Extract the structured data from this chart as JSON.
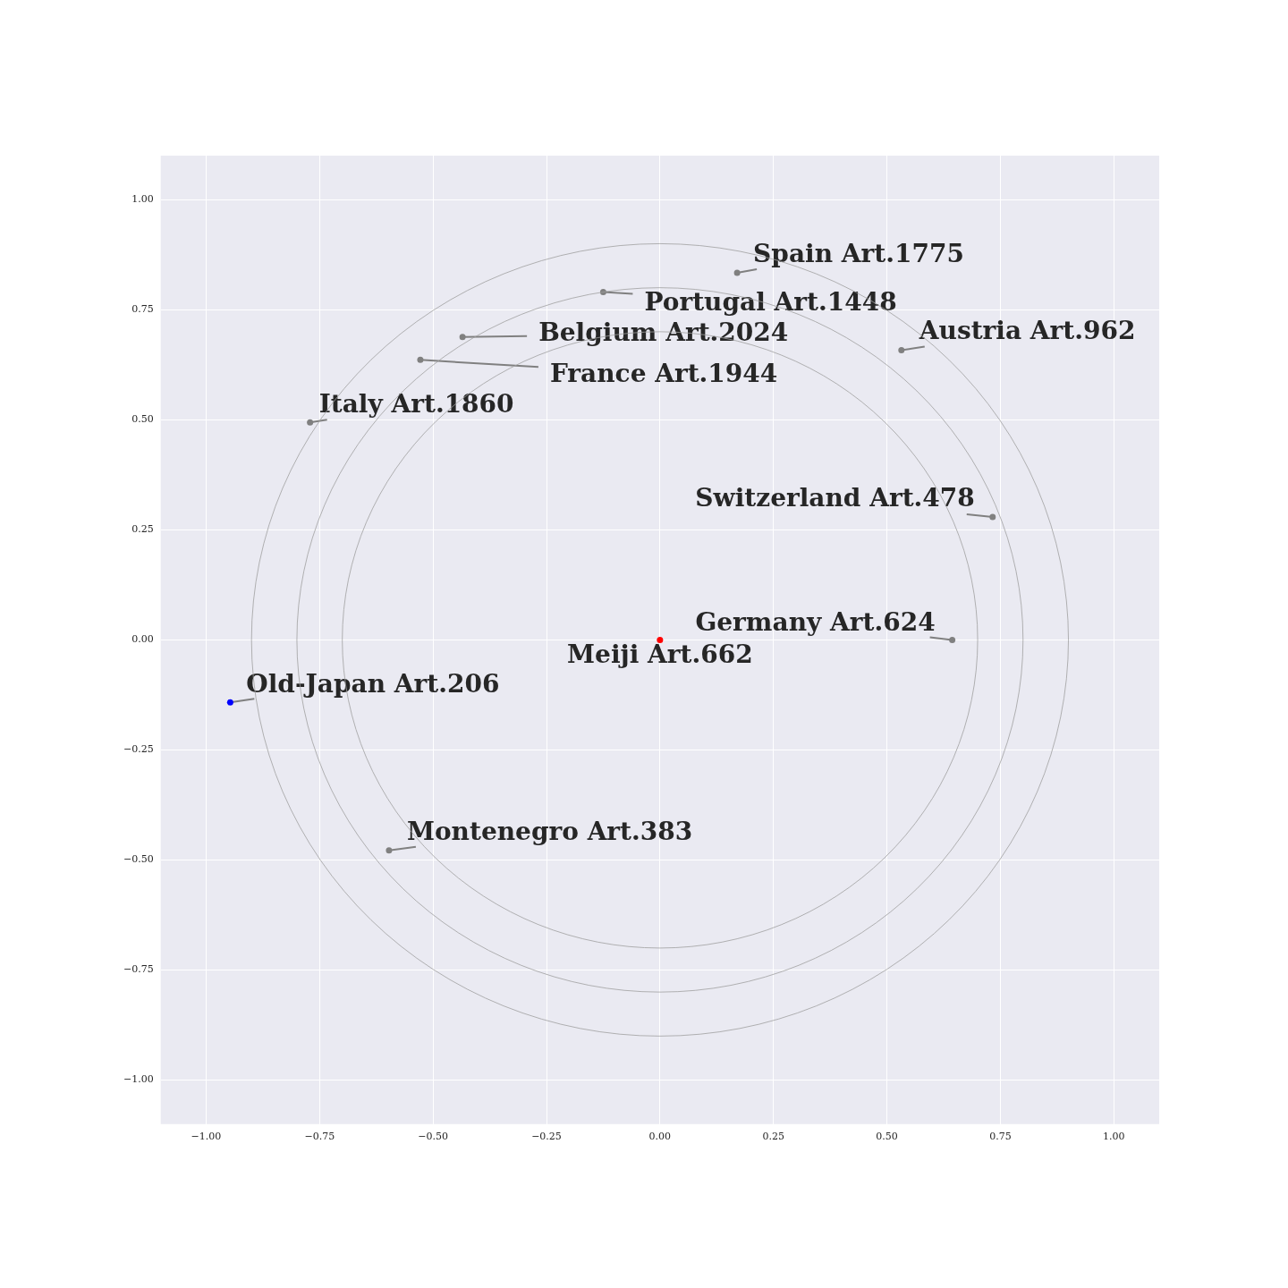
{
  "chart_data": {
    "type": "scatter",
    "xlim": [
      -1.1,
      1.1
    ],
    "ylim": [
      -1.1,
      1.1
    ],
    "xticks": [
      {
        "value": -1,
        "label": "−1.00"
      },
      {
        "value": -0.75,
        "label": "−0.75"
      },
      {
        "value": -0.5,
        "label": "−0.50"
      },
      {
        "value": -0.25,
        "label": "−0.25"
      },
      {
        "value": 0,
        "label": "0.00"
      },
      {
        "value": 0.25,
        "label": "0.25"
      },
      {
        "value": 0.5,
        "label": "0.50"
      },
      {
        "value": 0.75,
        "label": "0.75"
      },
      {
        "value": 1,
        "label": "1.00"
      }
    ],
    "yticks": [
      {
        "value": -1,
        "label": "−1.00"
      },
      {
        "value": -0.75,
        "label": "−0.75"
      },
      {
        "value": -0.5,
        "label": "−0.50"
      },
      {
        "value": -0.25,
        "label": "−0.25"
      },
      {
        "value": 0,
        "label": "0.00"
      },
      {
        "value": 0.25,
        "label": "0.25"
      },
      {
        "value": 0.5,
        "label": "0.50"
      },
      {
        "value": 0.75,
        "label": "0.75"
      },
      {
        "value": 1,
        "label": "1.00"
      }
    ],
    "grid": true,
    "legend": false,
    "marker": "circle",
    "series": [
      {
        "x": [
          0.17,
          -0.125,
          -0.435,
          -0.528,
          0.532,
          -0.771,
          0.733,
          0.644,
          0,
          -0.947,
          -0.597
        ],
        "values": [
          0.834,
          0.79,
          0.688,
          0.636,
          0.658,
          0.494,
          0.279,
          0,
          0,
          -0.142,
          -0.478
        ],
        "colors": [
          "#808080",
          "#808080",
          "#808080",
          "#808080",
          "#808080",
          "#808080",
          "#808080",
          "#808080",
          "#ff0000",
          "#0000ff",
          "#808080"
        ]
      }
    ],
    "annotations": [
      {
        "text": "Spain Art.1775",
        "x": 0.17,
        "y": 0.834
      },
      {
        "text": "Portugal Art.1448",
        "x": -0.125,
        "y": 0.79
      },
      "Belgium Art.2024",
      "France Art.1944",
      {
        "text": "Austria Art.962",
        "x": 0.532,
        "y": 0.658
      },
      {
        "text": "Italy Art.1860",
        "x": -0.771,
        "y": 0.494
      },
      {
        "text": "Switzerland Art.478",
        "x": 0.733,
        "y": 0.279
      },
      {
        "text": "Germany Art.624",
        "x": 0.644,
        "y": 0
      },
      {
        "text": "Meiji Art.662",
        "x": 0,
        "y": 0
      },
      {
        "text": "Old-Japan Art.206",
        "x": -0.947,
        "y": -0.142
      },
      {
        "text": "Montenegro Art.383",
        "x": -0.597,
        "y": -0.478
      }
    ]
  }
}
